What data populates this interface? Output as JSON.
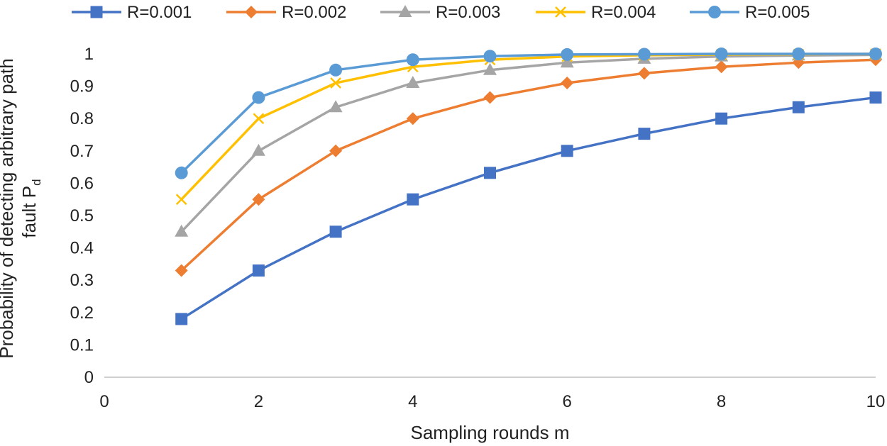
{
  "chart_data": {
    "type": "line",
    "xlabel": "Sampling rounds m",
    "ylabel_line1": "Probability of detecting arbitrary path",
    "ylabel_line2": "fault P",
    "ylabel_sub": "d",
    "xlim": [
      0,
      10
    ],
    "ylim": [
      0,
      1
    ],
    "x_ticks": [
      0,
      2,
      4,
      6,
      8,
      10
    ],
    "y_ticks": [
      0,
      0.1,
      0.2,
      0.3,
      0.4,
      0.5,
      0.6,
      0.7,
      0.8,
      0.9,
      1
    ],
    "x_tick_labels": [
      "0",
      "2",
      "4",
      "6",
      "8",
      "10"
    ],
    "y_tick_labels": [
      "0",
      "0.1",
      "0.2",
      "0.3",
      "0.4",
      "0.5",
      "0.6",
      "0.7",
      "0.8",
      "0.9",
      "1"
    ],
    "grid": false,
    "legend_position": "top",
    "x": [
      1,
      2,
      3,
      4,
      5,
      6,
      7,
      8,
      9,
      10
    ],
    "series": [
      {
        "name": "R=0.001",
        "color": "#4472C4",
        "marker": "square",
        "values": [
          0.18,
          0.33,
          0.45,
          0.55,
          0.632,
          0.7,
          0.753,
          0.8,
          0.835,
          0.865
        ]
      },
      {
        "name": "R=0.002",
        "color": "#ED7D31",
        "marker": "diamond",
        "values": [
          0.33,
          0.55,
          0.7,
          0.8,
          0.865,
          0.91,
          0.94,
          0.96,
          0.973,
          0.982
        ]
      },
      {
        "name": "R=0.003",
        "color": "#A5A5A5",
        "marker": "triangle",
        "values": [
          0.45,
          0.7,
          0.835,
          0.91,
          0.95,
          0.973,
          0.985,
          0.992,
          0.995,
          0.997
        ]
      },
      {
        "name": "R=0.004",
        "color": "#FFC000",
        "marker": "x",
        "values": [
          0.55,
          0.8,
          0.91,
          0.96,
          0.982,
          0.992,
          0.996,
          0.998,
          0.999,
          1.0
        ]
      },
      {
        "name": "R=0.005",
        "color": "#5B9BD5",
        "marker": "circle",
        "values": [
          0.632,
          0.865,
          0.95,
          0.982,
          0.993,
          0.998,
          0.999,
          1.0,
          1.0,
          1.0
        ]
      }
    ]
  }
}
